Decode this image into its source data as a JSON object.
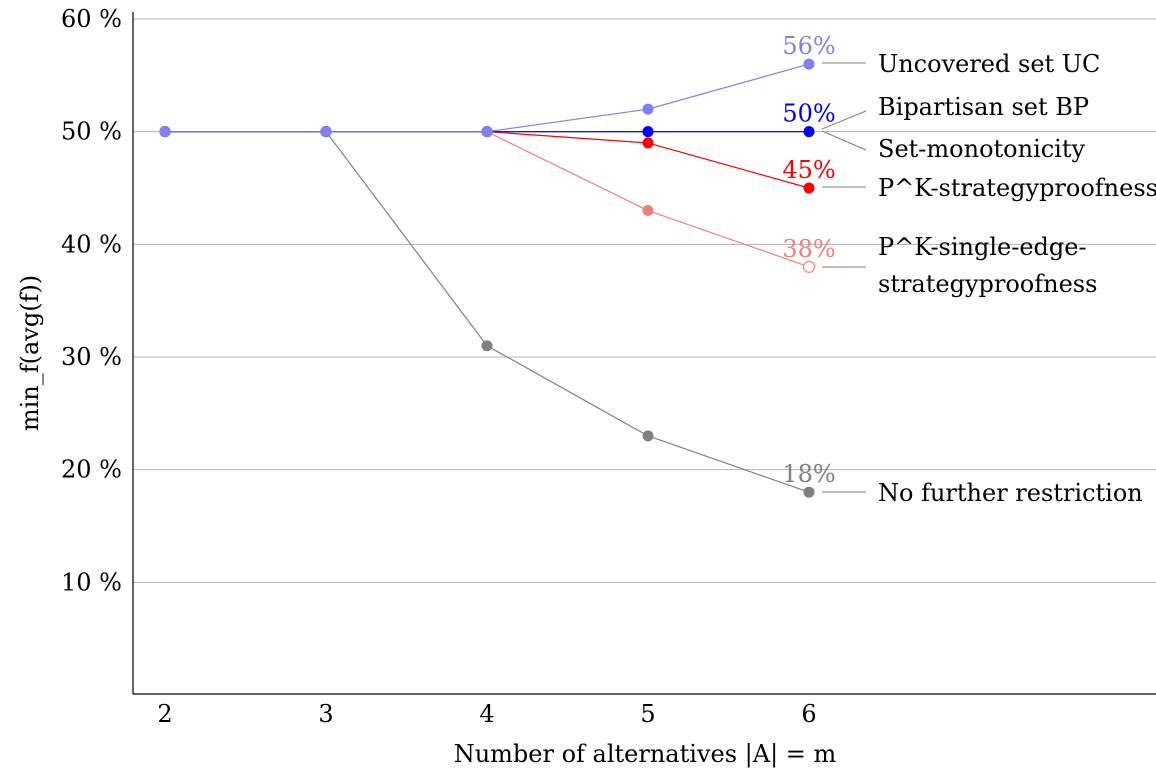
{
  "chart_data": {
    "type": "line",
    "xlabel": "Number of alternatives |A| = m",
    "ylabel": "min_f(avg(f))",
    "x": [
      2,
      3,
      4,
      5,
      6
    ],
    "xlim": [
      1.8,
      8.2
    ],
    "ylim": [
      0,
      60
    ],
    "yticks": [
      10,
      20,
      30,
      40,
      50,
      60
    ],
    "ytick_labels": [
      "10 %",
      "20 %",
      "30 %",
      "40 %",
      "50 %",
      "60 %"
    ],
    "grid": true,
    "series": [
      {
        "name": "No further restriction",
        "color": "#808080",
        "values": [
          50,
          50,
          31,
          23,
          18
        ],
        "end_label": "18%",
        "last_hollow": false
      },
      {
        "name": "P^K-single-edge-strategyproofness",
        "color": "#f08080",
        "values": [
          50,
          50,
          50,
          43,
          38
        ],
        "end_label": "38%",
        "last_hollow": true
      },
      {
        "name": "P^K-strategyproofness",
        "color": "#ff0000",
        "values": [
          50,
          50,
          50,
          49,
          45
        ],
        "end_label": "45%",
        "last_hollow": false
      },
      {
        "name": "Set-monotonicity",
        "color": "#808080",
        "values": [
          50,
          50,
          50,
          50,
          50
        ],
        "end_label": "",
        "last_hollow": false
      },
      {
        "name": "Bipartisan set BP",
        "color": "#0000ff",
        "values": [
          50,
          50,
          50,
          50,
          50
        ],
        "end_label": "50%",
        "last_hollow": false
      },
      {
        "name": "Uncovered set UC",
        "color": "#8080f0",
        "values": [
          50,
          50,
          50,
          52,
          56
        ],
        "end_label": "56%",
        "last_hollow": false
      }
    ],
    "annotations": {
      "uc": "Uncovered set UC",
      "bp": "Bipartisan set BP",
      "setmono": "Set-monotonicity",
      "pk_sp": "P^K-strategyproofness",
      "pk_sesp_1": "P^K-single-edge-",
      "pk_sesp_2": "strategyproofness",
      "none": "No further restriction"
    }
  }
}
